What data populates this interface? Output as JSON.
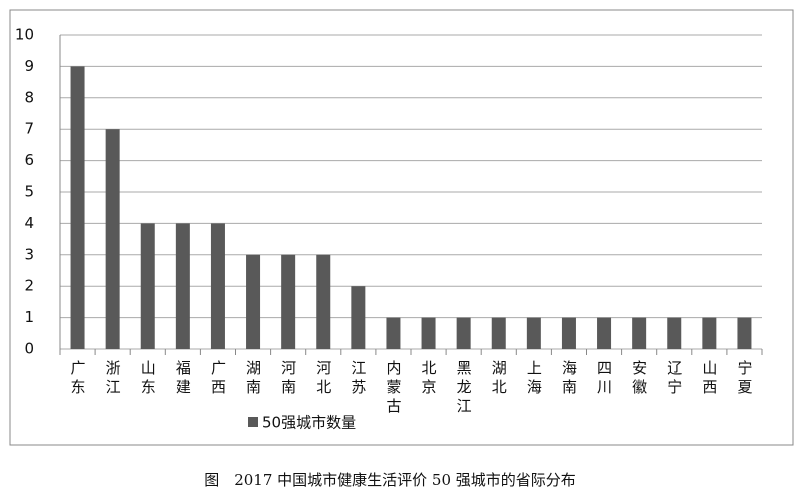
{
  "chart_data": {
    "type": "bar",
    "caption": "图　2017 中国城市健康生活评价 50 强城市的省际分布",
    "categories": [
      "广东",
      "浙江",
      "山东",
      "福建",
      "广西",
      "湖南",
      "河南",
      "河北",
      "江苏",
      "内蒙古",
      "北京",
      "黑龙江",
      "湖北",
      "上海",
      "海南",
      "四川",
      "安徽",
      "辽宁",
      "山西",
      "宁夏"
    ],
    "series": [
      {
        "name": "50强城市数量",
        "color": "#595959",
        "values": [
          9,
          7,
          4,
          4,
          4,
          3,
          3,
          3,
          2,
          1,
          1,
          1,
          1,
          1,
          1,
          1,
          1,
          1,
          1,
          1
        ]
      }
    ],
    "ylim": [
      0,
      10
    ],
    "yticks": [
      0,
      1,
      2,
      3,
      4,
      5,
      6,
      7,
      8,
      9,
      10
    ],
    "grid": true,
    "legend": "bottom"
  }
}
